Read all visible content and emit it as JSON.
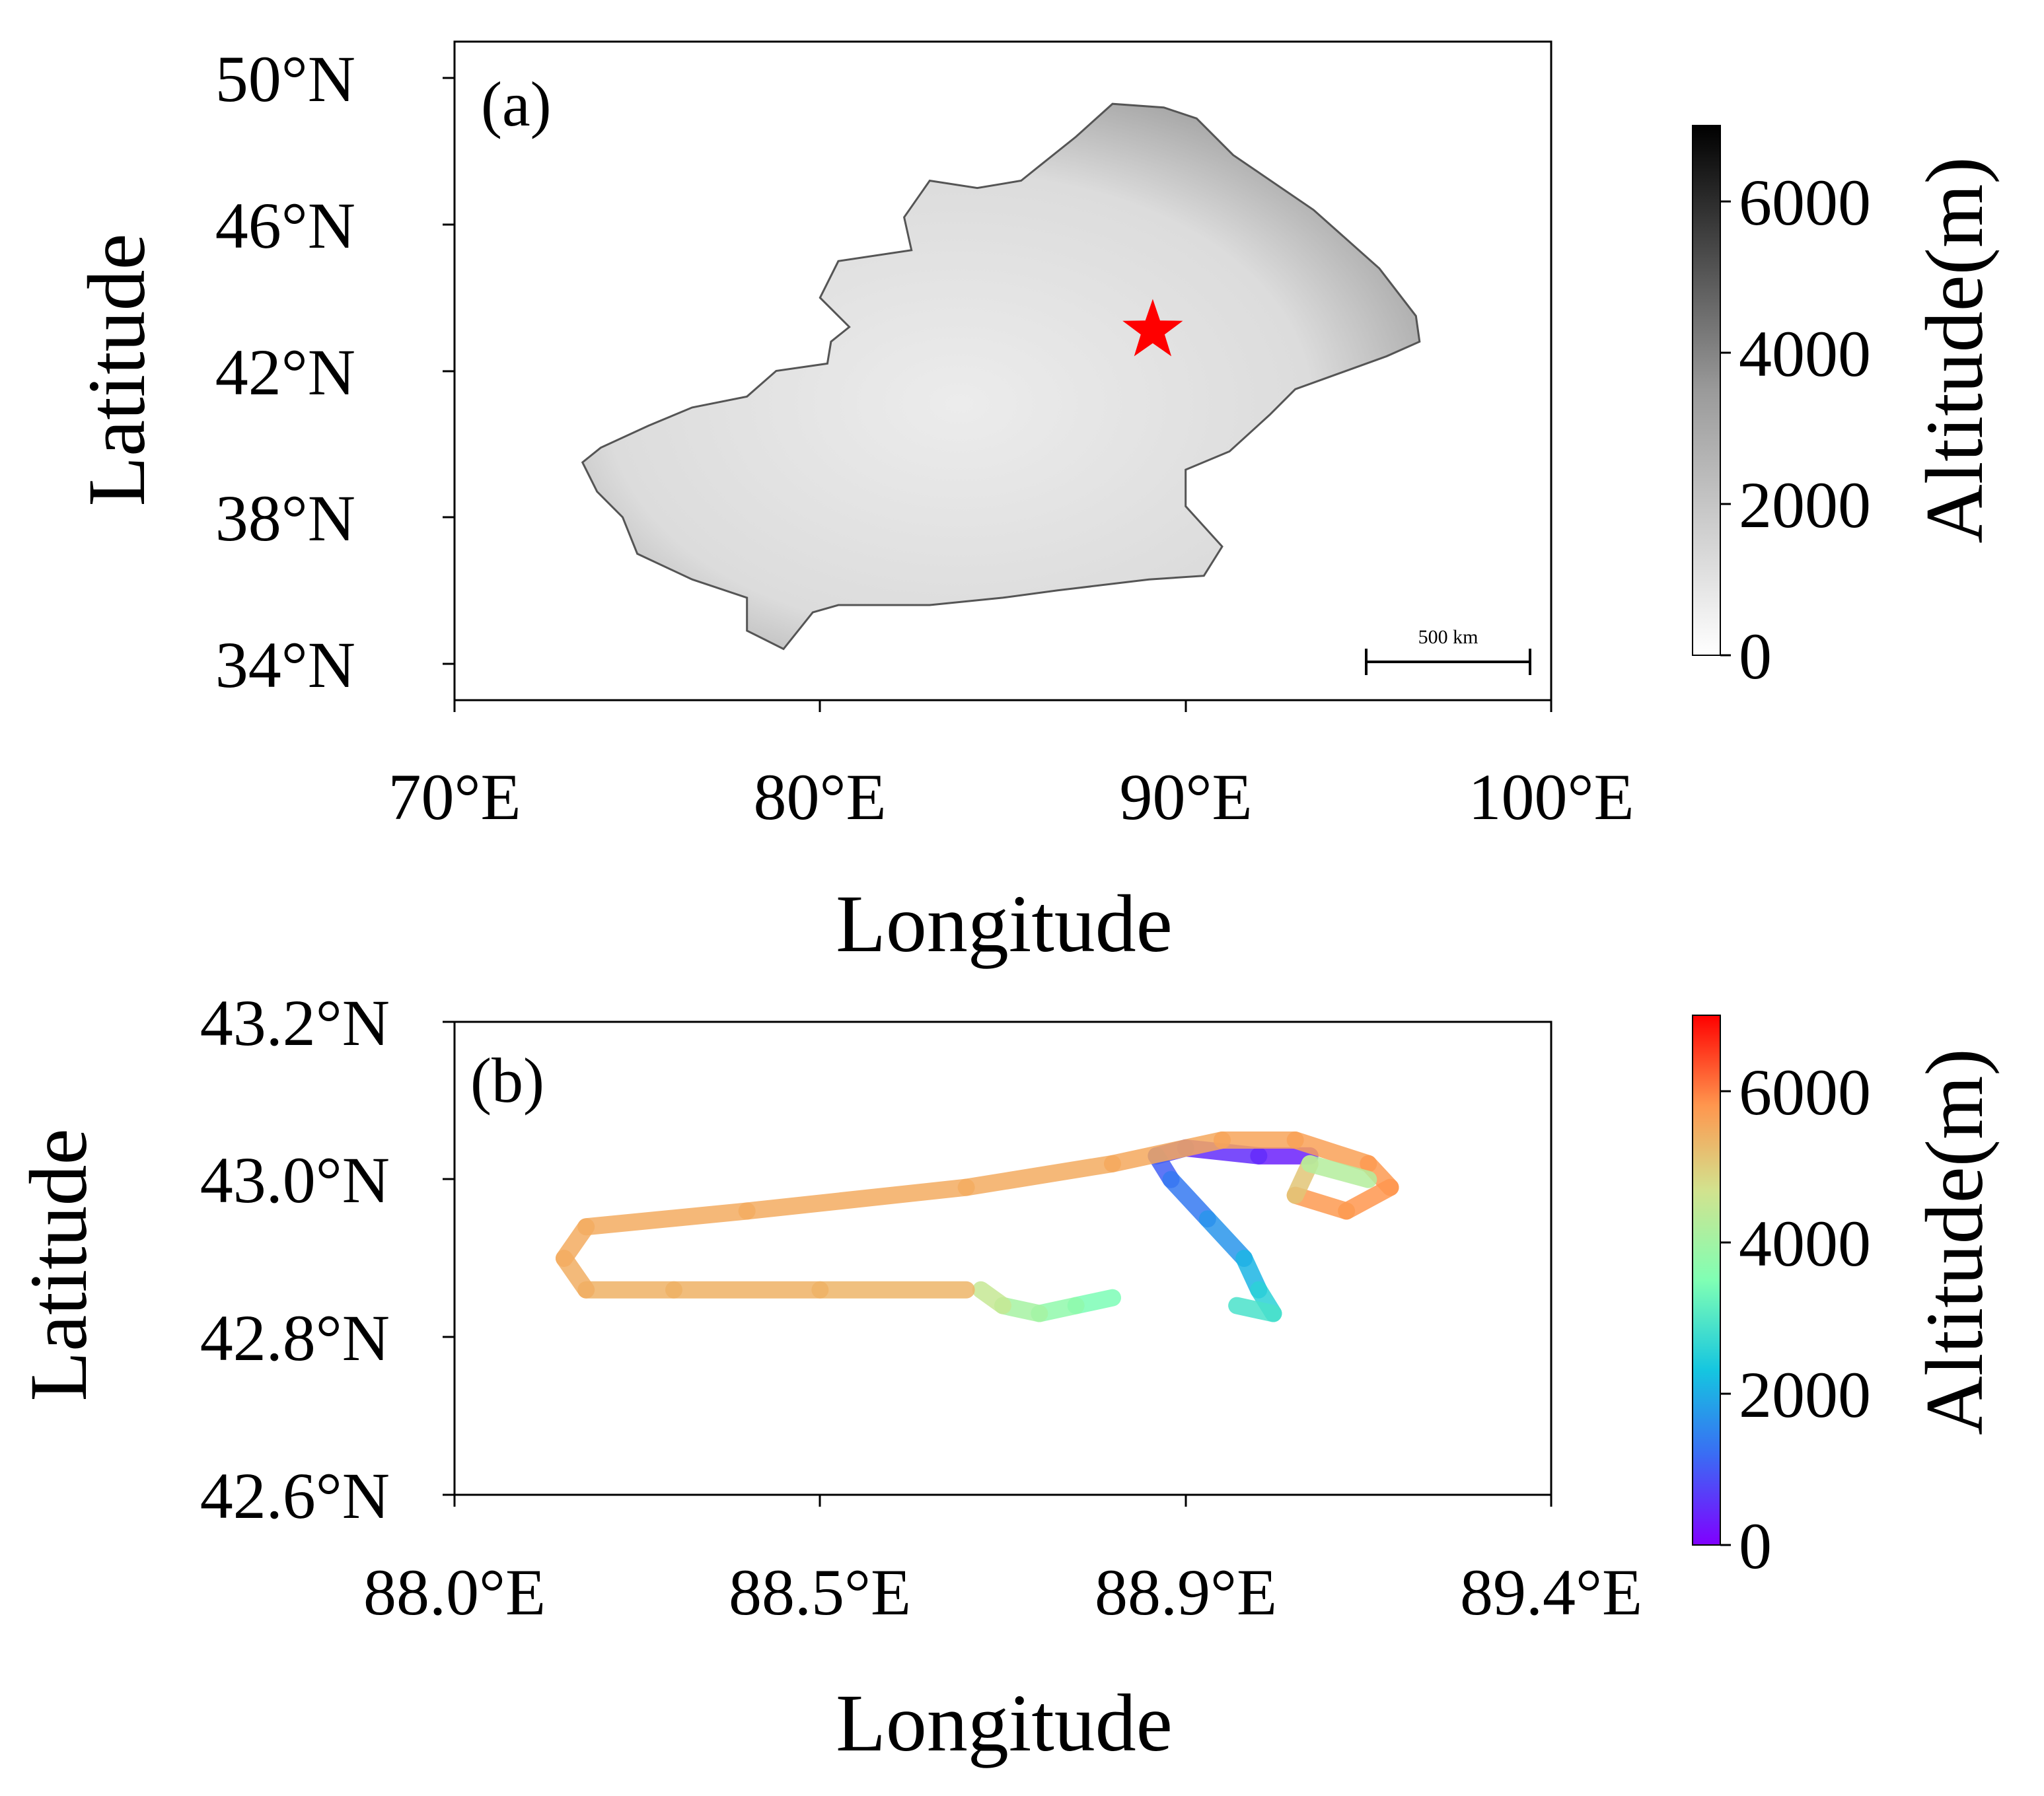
{
  "panel_a": {
    "label": "(a)",
    "x_axis_label": "Longitude",
    "y_axis_label": "Latitude",
    "x_ticks": [
      "70°E",
      "80°E",
      "90°E",
      "100°E"
    ],
    "y_ticks": [
      "34°N",
      "38°N",
      "42°N",
      "46°N",
      "50°N"
    ],
    "scale_bar_label": "500 km",
    "colorbar": {
      "label": "Altitude(m)",
      "ticks": [
        "0",
        "2000",
        "4000",
        "6000"
      ],
      "colors": [
        "#ffffff",
        "#000000"
      ]
    },
    "marker": {
      "symbol": "star",
      "color": "#ff0000",
      "lon": 89.1,
      "lat": 43.1
    }
  },
  "panel_b": {
    "label": "(b)",
    "x_axis_label": "Longitude",
    "y_axis_label": "Latitude",
    "x_ticks": [
      "88.0°E",
      "88.5°E",
      "88.9°E",
      "89.4°E"
    ],
    "y_ticks": [
      "42.6°N",
      "42.8°N",
      "43.0°N",
      "43.2°N"
    ],
    "colorbar": {
      "label": "Altitude(m)",
      "ticks": [
        "0",
        "2000",
        "4000",
        "6000"
      ],
      "colormap": "rainbow"
    }
  },
  "chart_data": [
    {
      "type": "map",
      "panel": "(a)",
      "xlabel": "Longitude",
      "ylabel": "Latitude",
      "xlim": [
        70,
        100
      ],
      "ylim": [
        33,
        51
      ],
      "region_outline_lonlat": [
        [
          89.4,
          49.2
        ],
        [
          90.3,
          48.9
        ],
        [
          91.3,
          47.9
        ],
        [
          93.5,
          46.4
        ],
        [
          95.3,
          44.8
        ],
        [
          96.3,
          43.5
        ],
        [
          96.4,
          42.8
        ],
        [
          95.5,
          42.4
        ],
        [
          93.0,
          41.5
        ],
        [
          92.3,
          40.8
        ],
        [
          91.2,
          39.8
        ],
        [
          90.0,
          39.3
        ],
        [
          90.0,
          38.3
        ],
        [
          91.0,
          37.2
        ],
        [
          90.5,
          36.4
        ],
        [
          89.0,
          36.3
        ],
        [
          86.5,
          36.0
        ],
        [
          85.0,
          35.8
        ],
        [
          83.0,
          35.6
        ],
        [
          80.5,
          35.6
        ],
        [
          79.8,
          35.4
        ],
        [
          79.0,
          34.4
        ],
        [
          78.0,
          34.9
        ],
        [
          78.0,
          35.8
        ],
        [
          76.5,
          36.3
        ],
        [
          75.0,
          37.0
        ],
        [
          74.6,
          38.0
        ],
        [
          73.9,
          38.7
        ],
        [
          73.5,
          39.5
        ],
        [
          74.0,
          39.9
        ],
        [
          75.3,
          40.5
        ],
        [
          76.5,
          41.0
        ],
        [
          78.0,
          41.3
        ],
        [
          78.8,
          42.0
        ],
        [
          80.2,
          42.2
        ],
        [
          80.3,
          42.8
        ],
        [
          80.8,
          43.2
        ],
        [
          80.0,
          44.0
        ],
        [
          80.5,
          45.0
        ],
        [
          82.5,
          45.3
        ],
        [
          82.3,
          46.2
        ],
        [
          83.0,
          47.2
        ],
        [
          84.3,
          47.0
        ],
        [
          85.5,
          47.2
        ],
        [
          86.0,
          47.6
        ],
        [
          87.0,
          48.4
        ],
        [
          88.0,
          49.3
        ],
        [
          89.4,
          49.2
        ]
      ],
      "marker": {
        "lon": 89.1,
        "lat": 43.1
      }
    },
    {
      "type": "line",
      "panel": "(b)",
      "xlabel": "Longitude",
      "ylabel": "Latitude",
      "xlim": [
        88.0,
        89.5
      ],
      "ylim": [
        42.6,
        43.2
      ],
      "series": [
        {
          "x": [
            89.17,
            89.1,
            89.0,
            88.96,
            88.98,
            89.03,
            89.08,
            89.1,
            89.12,
            89.07
          ],
          "y": [
            43.03,
            43.03,
            43.04,
            43.03,
            43.0,
            42.95,
            42.9,
            42.86,
            42.83,
            42.84
          ],
          "altitude": [
            300,
            400,
            600,
            900,
            1200,
            1500,
            1900,
            2300,
            2800,
            3000
          ]
        },
        {
          "x": [
            88.9,
            88.85,
            88.8,
            88.75,
            88.72
          ],
          "y": [
            42.85,
            42.84,
            42.83,
            42.84,
            42.86
          ],
          "altitude": [
            3300,
            3600,
            3900,
            4200,
            4800
          ]
        },
        {
          "x": [
            88.7,
            88.5,
            88.3,
            88.18,
            88.15,
            88.18,
            88.4,
            88.7,
            88.9,
            89.05,
            89.15,
            89.25,
            89.28,
            89.22,
            89.15,
            89.17,
            89.25
          ],
          "y": [
            42.86,
            42.86,
            42.86,
            42.86,
            42.9,
            42.94,
            42.96,
            42.99,
            43.02,
            43.05,
            43.05,
            43.02,
            42.99,
            42.96,
            42.98,
            43.02,
            43.0
          ],
          "altitude": [
            5300,
            5400,
            5400,
            5400,
            5500,
            5500,
            5500,
            5500,
            5500,
            5600,
            5600,
            5700,
            5800,
            5800,
            5700,
            4500,
            4000
          ]
        }
      ],
      "colorbar_range": [
        0,
        7000
      ]
    }
  ]
}
